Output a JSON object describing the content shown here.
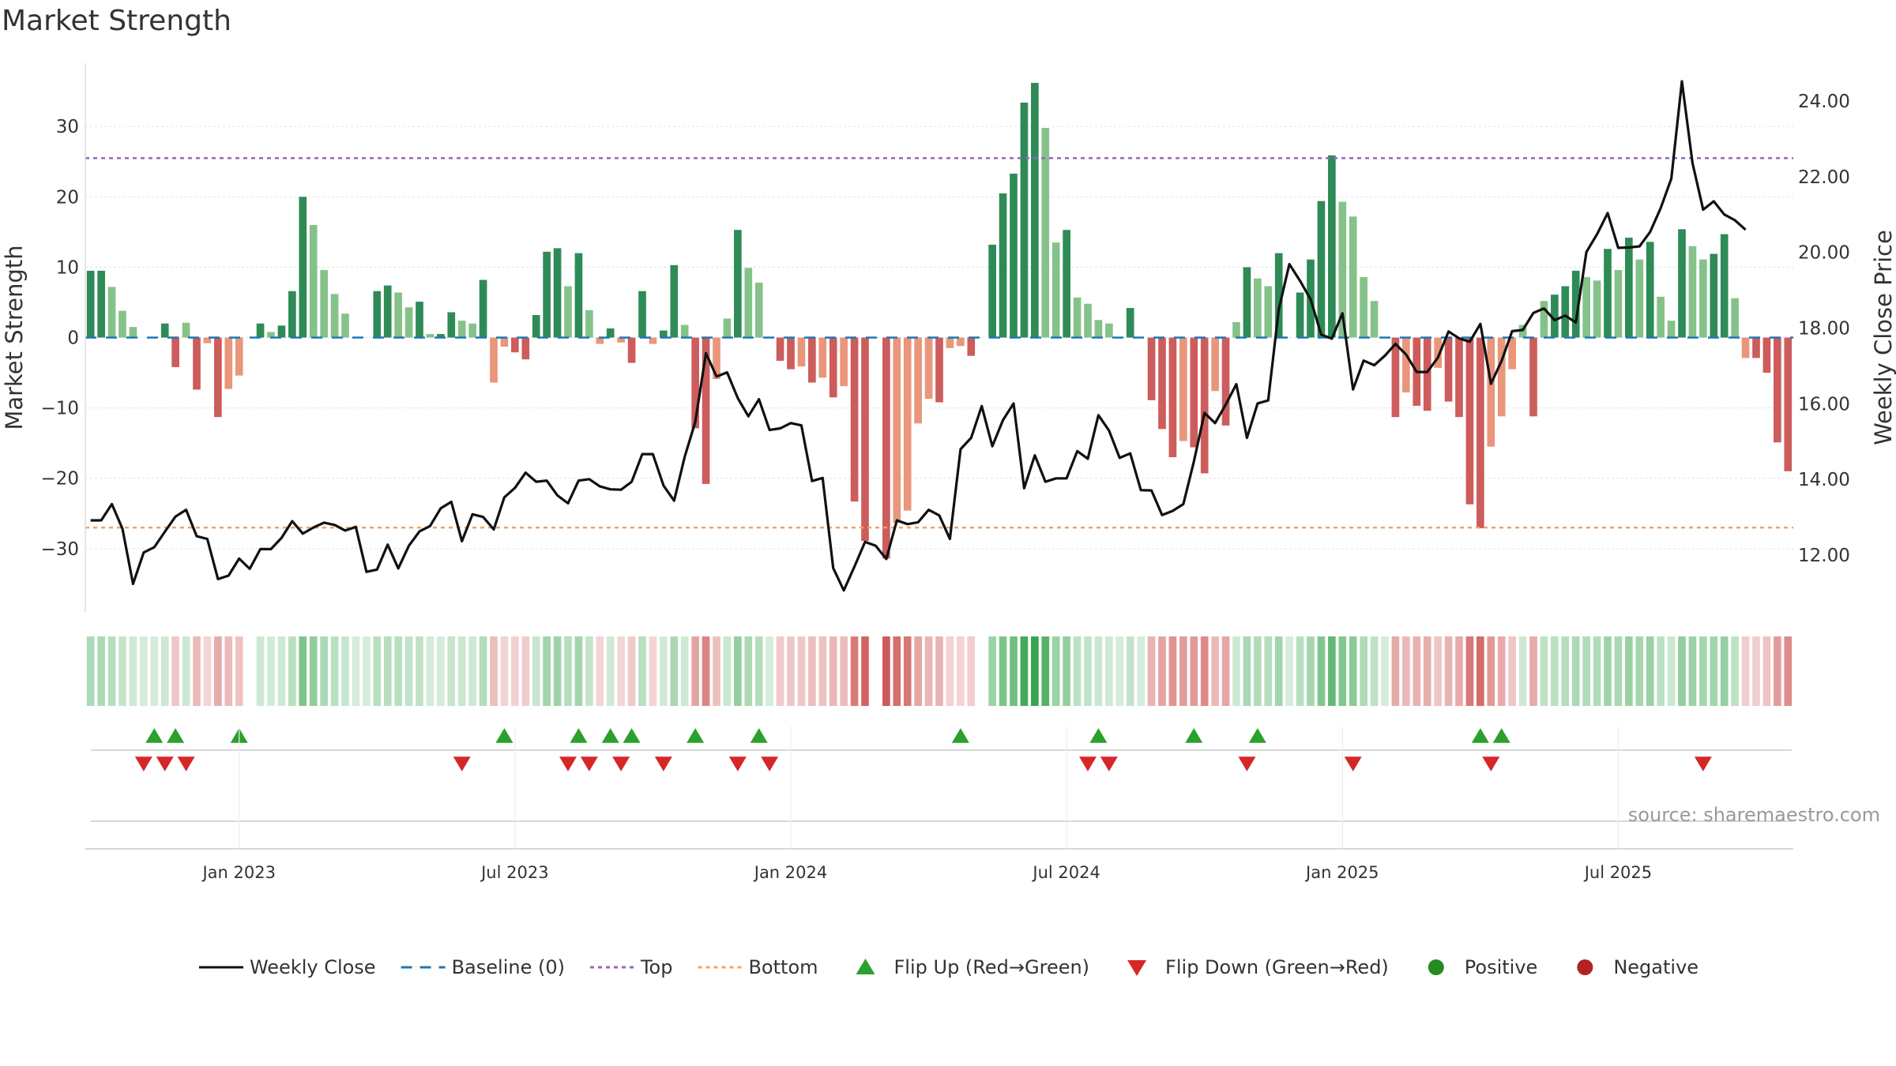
{
  "chart_data": {
    "type": "bar",
    "title": "Market Strength",
    "ylabel_left": "Market Strength",
    "ylabel_right": "Weekly Close Price",
    "ylim_left": [
      -39,
      39
    ],
    "ylim_right": [
      10.5,
      25.0
    ],
    "y_ticks_left": [
      {
        "v": 30,
        "label": "30"
      },
      {
        "v": 20,
        "label": "20"
      },
      {
        "v": 10,
        "label": "10"
      },
      {
        "v": 0,
        "label": "0"
      },
      {
        "v": -10,
        "label": "−10"
      },
      {
        "v": -20,
        "label": "−20"
      },
      {
        "v": -30,
        "label": "−30"
      }
    ],
    "y_ticks_right": [
      {
        "v": 24,
        "label": "24.00"
      },
      {
        "v": 22,
        "label": "22.00"
      },
      {
        "v": 20,
        "label": "20.00"
      },
      {
        "v": 18,
        "label": "18.00"
      },
      {
        "v": 16,
        "label": "16.00"
      },
      {
        "v": 14,
        "label": "14.00"
      },
      {
        "v": 12,
        "label": "12.00"
      }
    ],
    "x_ticks": [
      {
        "week": 14,
        "label": "Jan 2023"
      },
      {
        "week": 40,
        "label": "Jul 2023"
      },
      {
        "week": 66,
        "label": "Jan 2024"
      },
      {
        "week": 92,
        "label": "Jul 2024"
      },
      {
        "week": 118,
        "label": "Jan 2025"
      },
      {
        "week": 144,
        "label": "Jul 2025"
      }
    ],
    "reference_lines": {
      "baseline": 0,
      "top": 25.5,
      "bottom": -27
    },
    "strength": [
      9.5,
      9.5,
      7.2,
      3.8,
      1.5,
      0,
      0,
      2,
      -4.2,
      2.1,
      -7.4,
      -0.8,
      -11.3,
      -7.3,
      -5.4,
      0,
      2,
      0.8,
      1.7,
      6.6,
      20,
      16,
      9.6,
      6.2,
      3.4,
      0,
      0,
      6.6,
      7.4,
      6.4,
      4.3,
      5.1,
      0.5,
      0.5,
      3.6,
      2.4,
      2,
      8.2,
      -6.4,
      -1.3,
      -2.1,
      -3.1,
      3.2,
      12.2,
      12.7,
      7.3,
      12,
      3.9,
      -0.9,
      1.3,
      -0.7,
      -3.6,
      6.6,
      -0.9,
      1,
      10.3,
      1.8,
      -12.9,
      -20.8,
      -5.9,
      2.7,
      15.3,
      9.9,
      7.8,
      0,
      -3.3,
      -4.5,
      -4.1,
      -6.4,
      -5.7,
      -8.5,
      -6.9,
      -23.3,
      -28.9,
      0,
      -31.4,
      -26.3,
      -24.6,
      -12.2,
      -8.7,
      -9.2,
      -1.5,
      -1.2,
      -2.6,
      0,
      13.2,
      20.5,
      23.3,
      33.4,
      36.2,
      29.8,
      13.5,
      15.3,
      5.7,
      4.8,
      2.5,
      2,
      0,
      4.2,
      0,
      -8.9,
      -13,
      -17,
      -14.7,
      -15.6,
      -19.3,
      -7.6,
      -12.5,
      2.2,
      10,
      8.4,
      7.3,
      12,
      0,
      6.4,
      11.1,
      19.4,
      25.9,
      19.3,
      17.2,
      8.6,
      5.2,
      0,
      -11.3,
      -7.8,
      -9.7,
      -10.4,
      -4.3,
      -9.1,
      -11.3,
      -23.7,
      -27.1,
      -15.5,
      -11.2,
      -4.5,
      1.8,
      -11.2,
      5.2,
      6.1,
      7.3,
      9.5,
      8.6,
      8.1,
      12.6,
      9.6,
      14.2,
      11.1,
      13.6,
      5.8,
      2.4,
      15.4,
      13,
      11.1,
      11.9,
      14.7,
      5.6,
      -2.9,
      -2.9,
      -5,
      -14.9,
      -19
    ],
    "weekly_close": [
      12.92,
      12.92,
      13.35,
      12.7,
      11.24,
      12.07,
      12.21,
      12.62,
      13.02,
      13.2,
      12.5,
      12.43,
      11.37,
      11.46,
      11.91,
      11.64,
      12.16,
      12.16,
      12.46,
      12.9,
      12.57,
      12.73,
      12.86,
      12.8,
      12.65,
      12.75,
      11.56,
      11.62,
      12.28,
      11.65,
      12.25,
      12.63,
      12.77,
      13.24,
      13.41,
      12.37,
      13.08,
      13.01,
      12.68,
      13.53,
      13.78,
      14.18,
      13.94,
      13.97,
      13.58,
      13.37,
      13.97,
      14.01,
      13.82,
      13.74,
      13.73,
      13.94,
      14.67,
      14.67,
      13.84,
      13.44,
      14.6,
      15.52,
      17.34,
      16.72,
      16.83,
      16.15,
      15.67,
      16.12,
      15.31,
      15.35,
      15.49,
      15.43,
      13.96,
      14.04,
      11.66,
      11.07,
      11.7,
      12.35,
      12.25,
      11.9,
      12.92,
      12.82,
      12.87,
      13.2,
      13.05,
      12.43,
      14.8,
      15.1,
      15.94,
      14.88,
      15.57,
      16.01,
      13.77,
      14.64,
      13.94,
      14.03,
      14.03,
      14.75,
      14.55,
      15.7,
      15.29,
      14.57,
      14.69,
      13.72,
      13.71,
      13.06,
      13.17,
      13.35,
      14.48,
      15.76,
      15.49,
      15.98,
      16.52,
      15.1,
      16.01,
      16.09,
      18.5,
      19.69,
      19.25,
      18.76,
      17.83,
      17.72,
      18.39,
      16.38,
      17.14,
      17.02,
      17.27,
      17.58,
      17.3,
      16.84,
      16.84,
      17.22,
      17.91,
      17.73,
      17.64,
      18.11,
      16.53,
      17.13,
      17.92,
      17.95,
      18.4,
      18.52,
      18.21,
      18.33,
      18.15,
      20.01,
      20.48,
      21.04,
      20.12,
      20.13,
      20.16,
      20.54,
      21.17,
      21.95,
      24.52,
      22.36,
      21.13,
      21.35,
      21,
      20.85,
      20.6
    ],
    "flip_up_weeks": [
      6,
      8,
      14,
      39,
      46,
      49,
      51,
      57,
      63,
      82,
      95,
      104,
      110,
      131,
      133
    ],
    "flip_down_weeks": [
      5,
      7,
      9,
      35,
      45,
      47,
      50,
      54,
      61,
      64,
      94,
      96,
      109,
      119,
      132,
      152
    ],
    "colors": {
      "strong_green": "#2e8b57",
      "light_green": "#85c28a",
      "strong_red": "#cd5c5c",
      "light_red": "#e9967a",
      "weekly_close": "#111111",
      "baseline": "#1f77b4",
      "top": "#9467bd",
      "bottom": "#f4a460",
      "flip_up": "#2ca02c",
      "flip_down": "#d62728",
      "positive_dot": "#228b22",
      "negative_dot": "#b22222"
    },
    "legend_position": "bottom-center",
    "legend": [
      {
        "label": "Weekly Close",
        "marker": "line-solid",
        "color": "#111111"
      },
      {
        "label": "Baseline (0)",
        "marker": "line-dashed",
        "color": "#1f77b4"
      },
      {
        "label": "Top",
        "marker": "line-dotted",
        "color": "#9467bd"
      },
      {
        "label": "Bottom",
        "marker": "line-dotted",
        "color": "#f4a460"
      },
      {
        "label": "Flip Up (Red→Green)",
        "marker": "triangle-up",
        "color": "#2ca02c"
      },
      {
        "label": "Flip Down (Green→Red)",
        "marker": "triangle-down",
        "color": "#d62728"
      },
      {
        "label": "Positive",
        "marker": "circle",
        "color": "#228b22"
      },
      {
        "label": "Negative",
        "marker": "circle",
        "color": "#b22222"
      }
    ],
    "source_text": "source: sharemaestro.com"
  }
}
